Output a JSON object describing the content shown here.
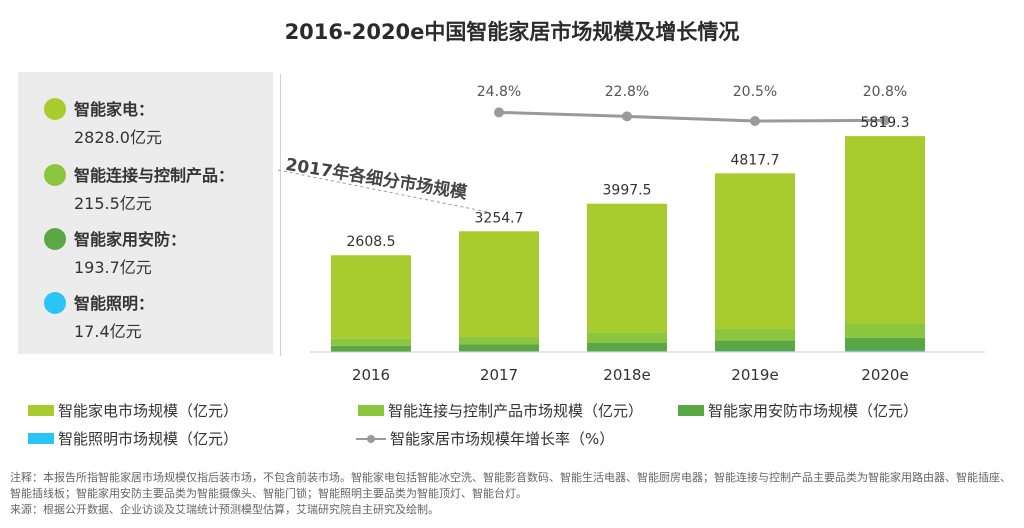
{
  "title": "2016-2020e中国智能家居市场规模及增长情况",
  "side_panel": {
    "callout": "2017年各细分市场规模",
    "items": [
      {
        "name": "智能家电：",
        "value": "2828.0亿元",
        "color": "#a8cc2e"
      },
      {
        "name": "智能连接与控制产品：",
        "value": "215.5亿元",
        "color": "#8cc63f"
      },
      {
        "name": "智能家用安防：",
        "value": "193.7亿元",
        "color": "#5aa845"
      },
      {
        "name": "智能照明：",
        "value": "17.4亿元",
        "color": "#29c5f6"
      }
    ]
  },
  "legend": {
    "appliance": "智能家电市场规模（亿元）",
    "connect": "智能连接与控制产品市场规模（亿元）",
    "security": "智能家用安防市场规模（亿元）",
    "lighting": "智能照明市场规模（亿元）",
    "growth": "智能家居市场规模年增长率（%）"
  },
  "notes": {
    "line1": "注释：本报告所指智能家居市场规模仅指后装市场，不包含前装市场。智能家电包括智能冰空洗、智能影音数码、智能生活电器、智能厨房电器；智能连接与控制产品主要品类为智能家用路由器、智能插座、智能插线板；智能家用安防主要品类为智能摄像头、智能门锁；智能照明主要品类为智能顶灯、智能台灯。",
    "line2": "来源：根据公开数据、企业访谈及艾瑞统计预测模型估算，艾瑞研究院自主研究及绘制。"
  },
  "chart_data": {
    "type": "bar",
    "stacked": true,
    "categories": [
      "2016",
      "2017",
      "2018e",
      "2019e",
      "2020e"
    ],
    "totals": [
      2608.5,
      3254.7,
      3997.5,
      4817.7,
      5819.3
    ],
    "series": [
      {
        "name": "智能家电市场规模（亿元）",
        "color": "#a8cc2e",
        "values": [
          2250,
          2828.0,
          3470,
          4180,
          5040
        ]
      },
      {
        "name": "智能连接与控制产品市场规模（亿元）",
        "color": "#8cc63f",
        "values": [
          190,
          215.5,
          275,
          330,
          400
        ]
      },
      {
        "name": "智能家用安防市场规模（亿元）",
        "color": "#5aa845",
        "values": [
          155,
          193.7,
          235,
          285,
          350
        ]
      },
      {
        "name": "智能照明市场规模（亿元）",
        "color": "#29c5f6",
        "values": [
          13.5,
          17.4,
          17.5,
          22.7,
          29.3
        ]
      }
    ],
    "growth_line": {
      "name": "智能家居市场规模年增长率（%）",
      "color": "#9a9a9a",
      "categories": [
        "2017",
        "2018e",
        "2019e",
        "2020e"
      ],
      "values": [
        24.8,
        22.8,
        20.5,
        20.8
      ],
      "labels": [
        "24.8%",
        "22.8%",
        "20.5%",
        "20.8%"
      ]
    },
    "ylim": [
      0,
      6200
    ],
    "grid": false,
    "legend_position": "bottom"
  }
}
